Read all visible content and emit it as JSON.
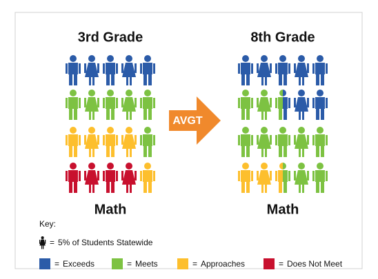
{
  "chart_data": {
    "type": "pictogram",
    "categories": [
      "3rd Grade",
      "8th Grade"
    ],
    "subject": "Math",
    "annotation": "AVGT",
    "series": [
      {
        "name": "Exceeds",
        "color": "#2b5ba8",
        "values": [
          25,
          37.5
        ]
      },
      {
        "name": "Meets",
        "color": "#7dc242",
        "values": [
          30,
          50
        ]
      },
      {
        "name": "Approaches",
        "color": "#fdbf2d",
        "values": [
          25,
          12.5
        ]
      },
      {
        "name": "Does Not Meet",
        "color": "#c8102e",
        "values": [
          20,
          0
        ]
      }
    ],
    "key": {
      "title": "Key:",
      "separator": "=",
      "unit": {
        "value": 5,
        "label": "5% of Students Statewide"
      }
    }
  }
}
